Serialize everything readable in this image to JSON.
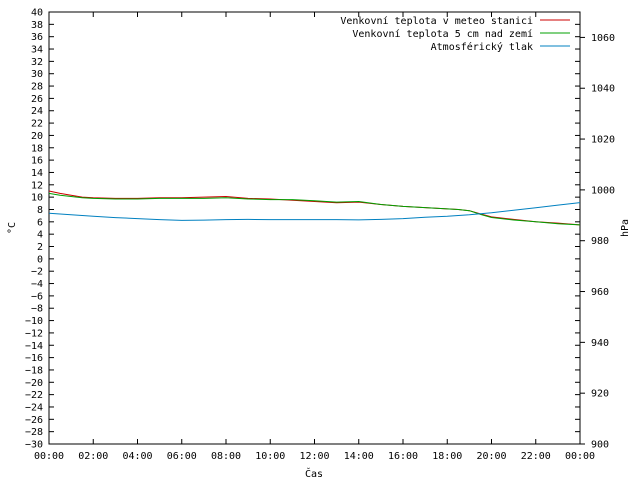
{
  "chart_data": {
    "type": "line",
    "xlabel": "Čas",
    "ylabel_left": "°C",
    "ylabel_right": "hPa",
    "x_ticks": [
      "00:00",
      "02:00",
      "04:00",
      "06:00",
      "08:00",
      "10:00",
      "12:00",
      "14:00",
      "16:00",
      "18:00",
      "20:00",
      "22:00",
      "00:00"
    ],
    "x_range_hours": [
      0,
      24
    ],
    "y_left_range": [
      -30,
      40
    ],
    "y_left_step": 2,
    "y_right_range": [
      900,
      1070
    ],
    "y_right_ticks": [
      900,
      920,
      940,
      960,
      980,
      1000,
      1020,
      1040,
      1060
    ],
    "grid": false,
    "legend_position": "top-right",
    "series": [
      {
        "name": "Venkovní teplota v meteo stanici",
        "axis": "left",
        "color": "#cc0000",
        "x": [
          0,
          0.5,
          1,
          1.5,
          2,
          3,
          4,
          5,
          6,
          7,
          8,
          9,
          10,
          11,
          12,
          13,
          14,
          15,
          16,
          17,
          18,
          18.5,
          19,
          19.5,
          20,
          21,
          22,
          23,
          24
        ],
        "values": [
          11.0,
          10.6,
          10.3,
          10.0,
          9.9,
          9.8,
          9.8,
          9.9,
          9.9,
          10.0,
          10.1,
          9.8,
          9.7,
          9.5,
          9.3,
          9.1,
          9.2,
          8.8,
          8.5,
          8.3,
          8.1,
          8.0,
          7.8,
          7.3,
          6.8,
          6.4,
          6.0,
          5.8,
          5.5
        ]
      },
      {
        "name": "Venkovní teplota 5 cm nad zemí",
        "axis": "left",
        "color": "#00a000",
        "x": [
          0,
          0.5,
          1,
          1.5,
          2,
          3,
          4,
          5,
          6,
          7,
          8,
          9,
          10,
          11,
          12,
          13,
          14,
          15,
          16,
          17,
          18,
          18.5,
          19,
          19.5,
          20,
          21,
          22,
          23,
          24
        ],
        "values": [
          10.6,
          10.3,
          10.1,
          9.9,
          9.8,
          9.7,
          9.7,
          9.8,
          9.8,
          9.8,
          9.9,
          9.7,
          9.6,
          9.6,
          9.4,
          9.2,
          9.3,
          8.8,
          8.5,
          8.3,
          8.1,
          8.0,
          7.8,
          7.2,
          6.7,
          6.3,
          6.0,
          5.7,
          5.5
        ]
      },
      {
        "name": "Atmosférický tlak",
        "axis": "right",
        "color": "#0080c0",
        "x": [
          0,
          1,
          2,
          3,
          4,
          5,
          6,
          7,
          8,
          9,
          10,
          11,
          12,
          13,
          14,
          15,
          16,
          17,
          18,
          19,
          20,
          21,
          22,
          23,
          24
        ],
        "values": [
          990.8,
          990.2,
          989.6,
          989.1,
          988.7,
          988.3,
          988.0,
          988.1,
          988.3,
          988.4,
          988.3,
          988.3,
          988.3,
          988.3,
          988.2,
          988.4,
          988.7,
          989.2,
          989.6,
          990.2,
          991.0,
          992.0,
          993.0,
          994.0,
          995.0
        ]
      }
    ]
  }
}
